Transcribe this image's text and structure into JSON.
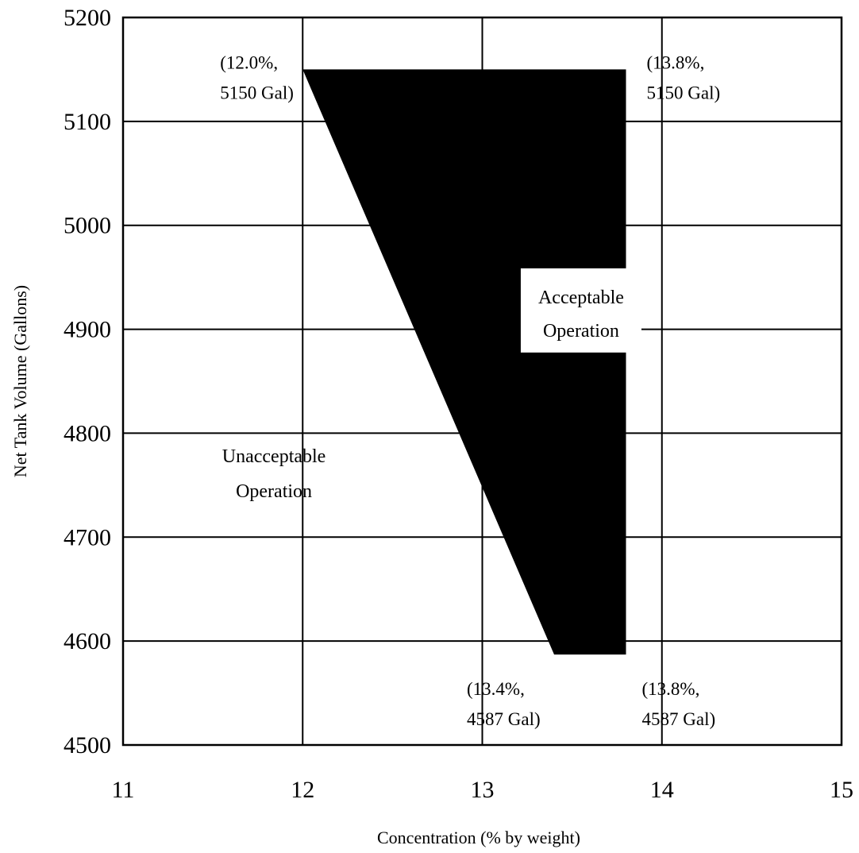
{
  "chart_data": {
    "type": "area",
    "xlabel": "Concentration (% by weight)",
    "ylabel": "Net Tank Volume (Gallons)",
    "xlim": [
      11,
      15
    ],
    "ylim": [
      4500,
      5200
    ],
    "x_ticks": [
      11,
      12,
      13,
      14,
      15
    ],
    "y_ticks": [
      4500,
      4600,
      4700,
      4800,
      4900,
      5000,
      5100,
      5200
    ],
    "grid": true,
    "legend": "none",
    "regions": [
      {
        "label_lines": [
          "Acceptable",
          "Operation"
        ],
        "fill": "#000000",
        "vertices": [
          {
            "x": 12.0,
            "y": 5150
          },
          {
            "x": 13.8,
            "y": 5150
          },
          {
            "x": 13.8,
            "y": 4587
          },
          {
            "x": 13.4,
            "y": 4587
          }
        ]
      }
    ],
    "outside_label_lines": [
      "Unacceptable",
      "Operation"
    ],
    "vertex_annotations": [
      {
        "lines": [
          "(12.0%,",
          "5150 Gal)"
        ],
        "x": 12.0,
        "y": 5150
      },
      {
        "lines": [
          "(13.8%,",
          "5150 Gal)"
        ],
        "x": 13.8,
        "y": 5150
      },
      {
        "lines": [
          "(13.4%,",
          "4587 Gal)"
        ],
        "x": 13.4,
        "y": 4587
      },
      {
        "lines": [
          "(13.8%,",
          "4587 Gal)"
        ],
        "x": 13.8,
        "y": 4587
      }
    ]
  }
}
